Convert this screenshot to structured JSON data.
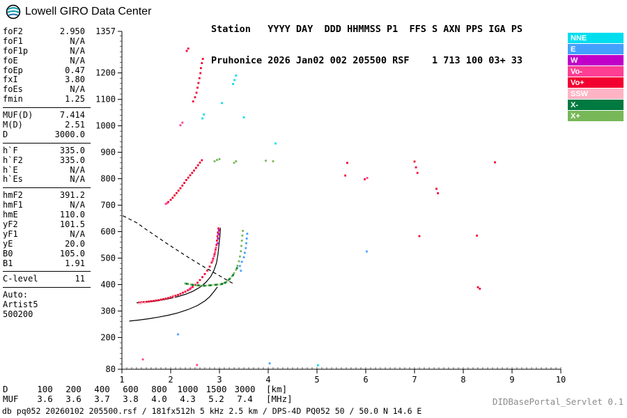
{
  "header": {
    "logo_text": "Lowell GIRO Data Center",
    "line1": "Station   YYYY DAY  DDD HHMMSS P1  FFS S AXN PPS IGA PS",
    "line2": "Pruhonice 2026 Jan02 002 205500 RSF    1 713 100 03+ 33"
  },
  "sidebar": {
    "groups": [
      {
        "rows": [
          {
            "label": "foF2",
            "value": "2.950"
          },
          {
            "label": "foF1",
            "value": "N/A"
          },
          {
            "label": "foF1p",
            "value": "N/A"
          },
          {
            "label": "foE",
            "value": "N/A"
          },
          {
            "label": "foEp",
            "value": "0.47"
          },
          {
            "label": "fxI",
            "value": "3.80"
          },
          {
            "label": "foEs",
            "value": "N/A"
          },
          {
            "label": "fmin",
            "value": "1.25"
          }
        ]
      },
      {
        "rows": [
          {
            "label": "MUF(D)",
            "value": "7.414"
          },
          {
            "label": "M(D)",
            "value": "2.51"
          },
          {
            "label": "D",
            "value": "3000.0"
          }
        ]
      },
      {
        "rows": [
          {
            "label": "h`F",
            "value": "335.0"
          },
          {
            "label": "h`F2",
            "value": "335.0"
          },
          {
            "label": "h`E",
            "value": "N/A"
          },
          {
            "label": "h`Es",
            "value": "N/A"
          }
        ]
      },
      {
        "rows": [
          {
            "label": "hmF2",
            "value": "391.2"
          },
          {
            "label": "hmF1",
            "value": "N/A"
          },
          {
            "label": "hmE",
            "value": "110.0"
          },
          {
            "label": "yF2",
            "value": "101.5"
          },
          {
            "label": "yF1",
            "value": "N/A"
          },
          {
            "label": "yE",
            "value": "20.0"
          },
          {
            "label": "B0",
            "value": "105.0"
          },
          {
            "label": "B1",
            "value": "1.91"
          }
        ]
      },
      {
        "rows": [
          {
            "label": "C-level",
            "value": "11"
          }
        ]
      }
    ],
    "auto": [
      "Auto:",
      "Artist5",
      "500200"
    ]
  },
  "legend": {
    "items": [
      {
        "label": "NNE",
        "color": "#00DDEE"
      },
      {
        "label": "E",
        "color": "#44A0FF"
      },
      {
        "label": "W",
        "color": "#C000C8"
      },
      {
        "label": "Vo-",
        "color": "#FF3F94"
      },
      {
        "label": "Vo+",
        "color": "#F20030"
      },
      {
        "label": "SSW",
        "color": "#FFB3C4"
      },
      {
        "label": "X-",
        "color": "#007A40"
      },
      {
        "label": "X+",
        "color": "#77B758"
      }
    ]
  },
  "chart_data": {
    "type": "scatter",
    "xlabel": "MHz",
    "ylabel": "km",
    "xlim": [
      1,
      10
    ],
    "ylim": [
      80,
      1357
    ],
    "x_ticks": [
      1,
      2,
      3,
      4,
      5,
      6,
      7,
      8,
      9,
      10
    ],
    "y_ticks": [
      80,
      200,
      300,
      400,
      500,
      600,
      700,
      800,
      900,
      1000,
      1100,
      1200,
      1357
    ],
    "grid": false,
    "legend_position": "right",
    "series": [
      {
        "name": "Vo+",
        "color": "#F20030",
        "points": [
          [
            1.35,
            332
          ],
          [
            1.4,
            333
          ],
          [
            1.45,
            334
          ],
          [
            1.5,
            335
          ],
          [
            1.55,
            336
          ],
          [
            1.6,
            337
          ],
          [
            1.65,
            338
          ],
          [
            1.7,
            340
          ],
          [
            1.75,
            341
          ],
          [
            1.8,
            343
          ],
          [
            1.85,
            345
          ],
          [
            1.9,
            347
          ],
          [
            1.95,
            349
          ],
          [
            2.0,
            352
          ],
          [
            2.05,
            355
          ],
          [
            2.1,
            358
          ],
          [
            2.15,
            361
          ],
          [
            2.2,
            365
          ],
          [
            2.25,
            369
          ],
          [
            2.3,
            373
          ],
          [
            2.35,
            378
          ],
          [
            2.4,
            384
          ],
          [
            2.45,
            391
          ],
          [
            2.5,
            399
          ],
          [
            2.55,
            407
          ],
          [
            2.6,
            417
          ],
          [
            2.65,
            428
          ],
          [
            2.7,
            440
          ],
          [
            2.75,
            453
          ],
          [
            2.8,
            468
          ],
          [
            2.84,
            483
          ],
          [
            2.87,
            498
          ],
          [
            2.9,
            515
          ],
          [
            2.92,
            532
          ],
          [
            2.94,
            550
          ],
          [
            2.95,
            566
          ],
          [
            2.96,
            582
          ],
          [
            2.97,
            597
          ],
          [
            2.98,
            612
          ],
          [
            1.95,
            712
          ],
          [
            2.0,
            720
          ],
          [
            2.04,
            728
          ],
          [
            2.08,
            737
          ],
          [
            2.12,
            746
          ],
          [
            2.16,
            755
          ],
          [
            2.2,
            764
          ],
          [
            2.24,
            774
          ],
          [
            2.28,
            784
          ],
          [
            2.32,
            795
          ],
          [
            2.36,
            804
          ],
          [
            2.4,
            813
          ],
          [
            2.44,
            822
          ],
          [
            2.48,
            831
          ],
          [
            2.52,
            841
          ],
          [
            2.56,
            851
          ],
          [
            2.6,
            861
          ],
          [
            2.64,
            870
          ],
          [
            2.46,
            1092
          ],
          [
            2.5,
            1108
          ],
          [
            2.53,
            1125
          ],
          [
            2.55,
            1144
          ],
          [
            2.57,
            1162
          ],
          [
            2.59,
            1180
          ],
          [
            2.61,
            1199
          ],
          [
            2.62,
            1218
          ],
          [
            2.64,
            1237
          ],
          [
            2.66,
            1253
          ],
          [
            2.33,
            1283
          ],
          [
            2.36,
            1292
          ],
          [
            5.58,
            812
          ],
          [
            5.62,
            860
          ],
          [
            5.98,
            798
          ],
          [
            7.0,
            865
          ],
          [
            7.03,
            843
          ],
          [
            7.06,
            822
          ],
          [
            7.1,
            583
          ],
          [
            7.45,
            762
          ],
          [
            7.48,
            745
          ],
          [
            8.28,
            585
          ],
          [
            8.3,
            390
          ],
          [
            8.34,
            384
          ],
          [
            8.65,
            862
          ]
        ]
      },
      {
        "name": "Vo-",
        "color": "#FF3F94",
        "points": [
          [
            2.38,
            381
          ],
          [
            2.42,
            388
          ],
          [
            2.86,
            490
          ],
          [
            2.89,
            507
          ],
          [
            2.91,
            523
          ],
          [
            2.93,
            540
          ],
          [
            1.9,
            705
          ],
          [
            1.93,
            708
          ],
          [
            2.2,
            1002
          ],
          [
            2.24,
            1012
          ],
          [
            1.43,
            117
          ],
          [
            2.54,
            96
          ],
          [
            6.03,
            803
          ]
        ]
      },
      {
        "name": "W",
        "color": "#C000C8",
        "points": [
          [
            2.96,
            556
          ],
          [
            2.97,
            574
          ],
          [
            2.98,
            590
          ],
          [
            2.99,
            605
          ]
        ]
      },
      {
        "name": "SSW",
        "color": "#FFB3C4",
        "points": [
          [
            1.36,
            328
          ],
          [
            1.41,
            330
          ],
          [
            1.47,
            331
          ],
          [
            2.07,
            352
          ]
        ]
      },
      {
        "name": "X+",
        "color": "#77B758",
        "points": [
          [
            2.3,
            404
          ],
          [
            2.36,
            402
          ],
          [
            2.42,
            400
          ],
          [
            2.48,
            398
          ],
          [
            2.54,
            397
          ],
          [
            2.6,
            396
          ],
          [
            2.66,
            396
          ],
          [
            2.72,
            396
          ],
          [
            2.78,
            397
          ],
          [
            2.84,
            398
          ],
          [
            2.9,
            399
          ],
          [
            2.96,
            400
          ],
          [
            3.02,
            401
          ],
          [
            3.06,
            403
          ],
          [
            3.1,
            406
          ],
          [
            3.14,
            410
          ],
          [
            3.18,
            416
          ],
          [
            3.22,
            423
          ],
          [
            3.26,
            432
          ],
          [
            3.3,
            443
          ],
          [
            3.34,
            456
          ],
          [
            3.37,
            471
          ],
          [
            3.4,
            488
          ],
          [
            3.42,
            506
          ],
          [
            3.44,
            526
          ],
          [
            3.45,
            546
          ],
          [
            3.46,
            566
          ],
          [
            3.47,
            585
          ],
          [
            3.48,
            603
          ],
          [
            2.9,
            866
          ],
          [
            2.95,
            871
          ],
          [
            3.0,
            874
          ],
          [
            3.3,
            860
          ],
          [
            3.34,
            866
          ],
          [
            3.95,
            868
          ],
          [
            4.1,
            866
          ]
        ]
      },
      {
        "name": "X-",
        "color": "#007A40",
        "points": [
          [
            2.33,
            403
          ],
          [
            2.45,
            399
          ],
          [
            2.57,
            397
          ],
          [
            2.69,
            396
          ],
          [
            2.81,
            397
          ],
          [
            2.93,
            399
          ],
          [
            3.05,
            402
          ],
          [
            3.12,
            407
          ],
          [
            3.2,
            420
          ],
          [
            3.28,
            436
          ],
          [
            3.36,
            462
          ]
        ]
      },
      {
        "name": "E",
        "color": "#44A0FF",
        "points": [
          [
            3.42,
            470
          ],
          [
            3.44,
            452
          ],
          [
            3.46,
            486
          ],
          [
            3.5,
            503
          ],
          [
            3.52,
            520
          ],
          [
            3.54,
            538
          ],
          [
            3.55,
            556
          ],
          [
            3.56,
            574
          ],
          [
            3.57,
            592
          ],
          [
            6.02,
            525
          ],
          [
            2.15,
            212
          ],
          [
            4.03,
            102
          ]
        ]
      },
      {
        "name": "NNE",
        "color": "#00DDEE",
        "points": [
          [
            2.65,
            1028
          ],
          [
            2.68,
            1043
          ],
          [
            3.05,
            1086
          ],
          [
            3.28,
            1158
          ],
          [
            3.31,
            1173
          ],
          [
            3.34,
            1190
          ],
          [
            3.5,
            1032
          ],
          [
            4.15,
            933
          ],
          [
            5.02,
            95
          ]
        ]
      }
    ],
    "curves": [
      {
        "name": "true-height-profile",
        "style": "solid",
        "points": [
          [
            1.15,
            262
          ],
          [
            1.35,
            266
          ],
          [
            1.55,
            271
          ],
          [
            1.75,
            277
          ],
          [
            1.95,
            284
          ],
          [
            2.15,
            293
          ],
          [
            2.35,
            305
          ],
          [
            2.55,
            321
          ],
          [
            2.7,
            338
          ],
          [
            2.8,
            354
          ],
          [
            2.88,
            372
          ],
          [
            2.93,
            384
          ],
          [
            2.96,
            391
          ]
        ]
      },
      {
        "name": "o-trace-fit",
        "style": "solid",
        "points": [
          [
            1.3,
            331
          ],
          [
            1.5,
            334
          ],
          [
            1.7,
            338
          ],
          [
            1.9,
            344
          ],
          [
            2.1,
            352
          ],
          [
            2.3,
            363
          ],
          [
            2.45,
            374
          ],
          [
            2.6,
            390
          ],
          [
            2.72,
            408
          ],
          [
            2.82,
            430
          ],
          [
            2.89,
            455
          ],
          [
            2.94,
            482
          ],
          [
            2.97,
            515
          ],
          [
            2.99,
            550
          ],
          [
            3.01,
            585
          ],
          [
            3.02,
            615
          ]
        ]
      },
      {
        "name": "extrapolated-trace",
        "style": "dashed",
        "points": [
          [
            1.02,
            660
          ],
          [
            1.3,
            634
          ],
          [
            1.5,
            608
          ],
          [
            1.7,
            583
          ],
          [
            1.9,
            558
          ],
          [
            2.1,
            534
          ],
          [
            2.3,
            510
          ],
          [
            2.5,
            487
          ],
          [
            2.7,
            465
          ],
          [
            2.9,
            444
          ],
          [
            3.05,
            428
          ],
          [
            3.2,
            412
          ],
          [
            3.3,
            402
          ]
        ]
      }
    ]
  },
  "dmuf": {
    "rows": [
      {
        "label": "D",
        "values": [
          "100",
          "200",
          "400",
          "600",
          "800",
          "1000",
          "1500",
          "3000"
        ],
        "unit": "[km]"
      },
      {
        "label": "MUF",
        "values": [
          "3.6",
          "3.6",
          "3.7",
          "3.8",
          "4.0",
          "4.3",
          "5.2",
          "7.4"
        ],
        "unit": "[MHz]"
      }
    ]
  },
  "footer": {
    "status": "db pq052 20260102 205500.rsf / 181fx512h 5 kHz 2.5 km / DPS-4D PQ052 50 / 50.0 N 14.6 E",
    "servlet": "DIDBasePortal_Servlet 0.1"
  }
}
